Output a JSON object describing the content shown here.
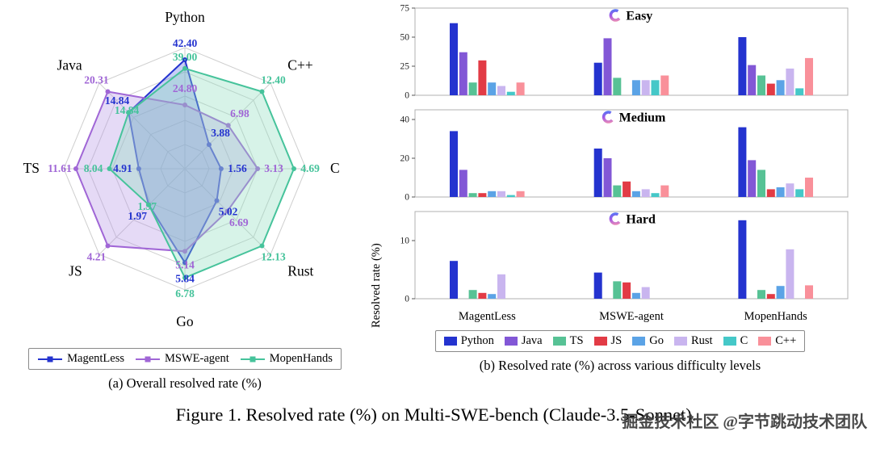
{
  "figure": {
    "caption": "Figure 1. Resolved rate (%) on Multi-SWE-bench (Claude-3.5-Sonnet).",
    "watermark": "掘金技术社区 @字节跳动技术团队"
  },
  "panel_a": {
    "caption": "(a) Overall resolved rate (%)"
  },
  "panel_b": {
    "caption": "(b) Resolved rate (%) across various difficulty levels",
    "ylabel": "Resolved rate (%)"
  },
  "languages": [
    {
      "label": "Python",
      "color": "#2433cf"
    },
    {
      "label": "Java",
      "color": "#8257d6"
    },
    {
      "label": "TS",
      "color": "#57c295"
    },
    {
      "label": "JS",
      "color": "#e23b45"
    },
    {
      "label": "Go",
      "color": "#5ba3e6"
    },
    {
      "label": "Rust",
      "color": "#c9b5ef"
    },
    {
      "label": "C",
      "color": "#45c8c8"
    },
    {
      "label": "C++",
      "color": "#f9909a"
    }
  ],
  "chart_data": [
    {
      "type": "radar",
      "title": "Overall resolved rate (%)",
      "axes": [
        "Python",
        "C++",
        "C",
        "Rust",
        "Go",
        "JS",
        "TS",
        "Java"
      ],
      "rings": 5,
      "normalize_per_axis": true,
      "axis_headroom": 0.9,
      "legend_position": "bottom",
      "series": [
        {
          "name": "MagentLess",
          "color": "#2433cf",
          "fill": "rgba(70,90,225,0.30)",
          "values": [
            42.4,
            3.88,
            1.56,
            5.02,
            5.84,
            1.97,
            4.91,
            14.84
          ]
        },
        {
          "name": "MSWE-agent",
          "color": "#a066d6",
          "fill": "rgba(180,150,230,0.35)",
          "values": [
            24.8,
            6.98,
            3.13,
            6.69,
            5.14,
            4.21,
            11.61,
            20.31
          ]
        },
        {
          "name": "MopenHands",
          "color": "#46c39b",
          "fill": "rgba(140,220,190,0.35)",
          "values": [
            39.0,
            12.4,
            4.69,
            12.13,
            6.78,
            1.97,
            8.04,
            14.84
          ]
        }
      ]
    },
    {
      "type": "bar",
      "title": "Easy",
      "ylim": [
        0,
        75
      ],
      "yticks": [
        0,
        25,
        50,
        75
      ],
      "categories": [
        "Python",
        "Java",
        "TS",
        "JS",
        "Go",
        "Rust",
        "C",
        "C++"
      ],
      "groups": [
        {
          "name": "MagentLess",
          "values": [
            62,
            37,
            11,
            30,
            11,
            8,
            3,
            11
          ]
        },
        {
          "name": "MSWE-agent",
          "values": [
            28,
            49,
            15,
            0,
            13,
            13,
            13,
            17
          ]
        },
        {
          "name": "MopenHands",
          "values": [
            50,
            26,
            17,
            10,
            13,
            23,
            6,
            32
          ]
        }
      ]
    },
    {
      "type": "bar",
      "title": "Medium",
      "ylim": [
        0,
        45
      ],
      "yticks": [
        0,
        20,
        40
      ],
      "categories": [
        "Python",
        "Java",
        "TS",
        "JS",
        "Go",
        "Rust",
        "C",
        "C++"
      ],
      "groups": [
        {
          "name": "MagentLess",
          "values": [
            34,
            14,
            2,
            2,
            3,
            3,
            1,
            3
          ]
        },
        {
          "name": "MSWE-agent",
          "values": [
            25,
            20,
            6,
            8,
            3,
            4,
            2,
            6
          ]
        },
        {
          "name": "MopenHands",
          "values": [
            36,
            19,
            14,
            4,
            5,
            7,
            4,
            10
          ]
        }
      ]
    },
    {
      "type": "bar",
      "title": "Hard",
      "ylim": [
        0,
        15
      ],
      "yticks": [
        0,
        10
      ],
      "categories": [
        "Python",
        "Java",
        "TS",
        "JS",
        "Go",
        "Rust",
        "C",
        "C++"
      ],
      "groups": [
        {
          "name": "MagentLess",
          "values": [
            6.5,
            0,
            1.5,
            1,
            0.8,
            4.2,
            0,
            0
          ]
        },
        {
          "name": "MSWE-agent",
          "values": [
            4.5,
            0,
            3,
            2.8,
            1,
            2,
            0,
            0
          ]
        },
        {
          "name": "MopenHands",
          "values": [
            13.5,
            0,
            1.5,
            0.8,
            2.2,
            8.5,
            0,
            2.3
          ]
        }
      ]
    }
  ]
}
